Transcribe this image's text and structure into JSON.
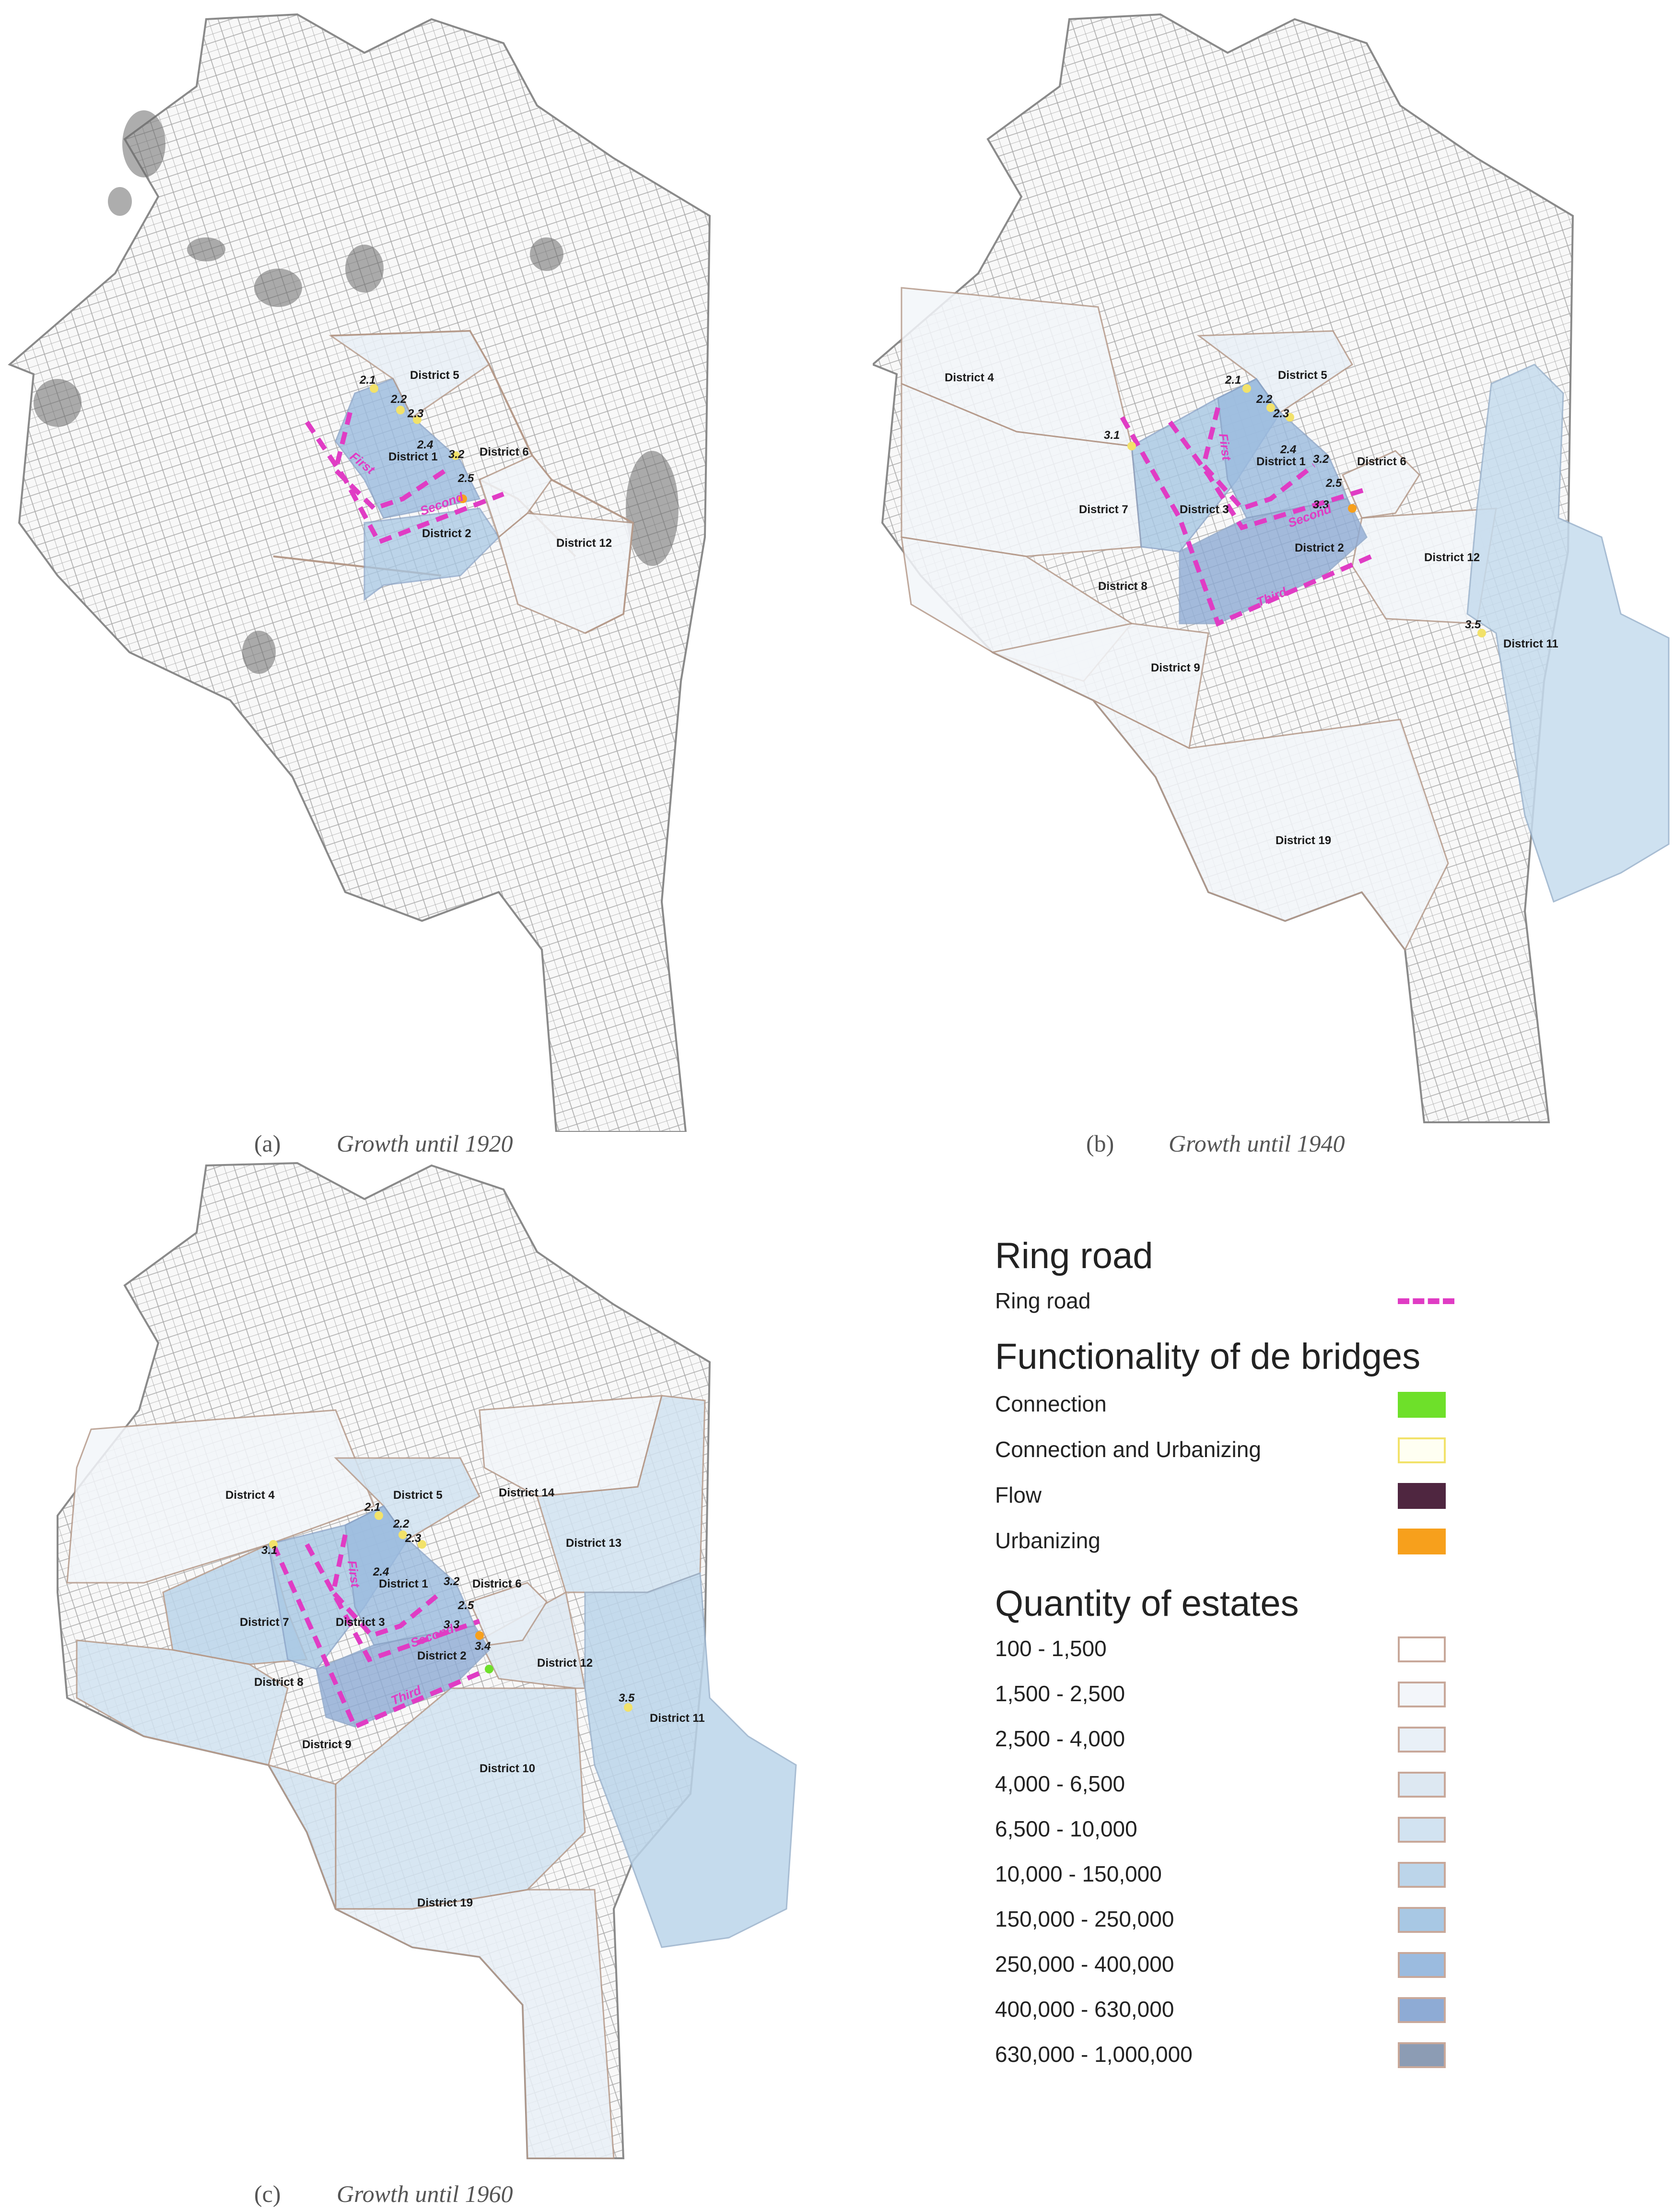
{
  "panels": [
    {
      "letter": "(a)",
      "caption": "Growth until 1920",
      "districts": [
        "District 5",
        "District 1",
        "District 6",
        "District 2",
        "District 12"
      ],
      "bridges": [
        "2.1",
        "2.2",
        "2.3",
        "2.4",
        "3.2",
        "2.5"
      ],
      "ring_roads": [
        "First",
        "Second"
      ]
    },
    {
      "letter": "(b)",
      "caption": "Growth until 1940",
      "districts": [
        "District 4",
        "District 5",
        "District 6",
        "District 1",
        "District 7",
        "District 3",
        "District 2",
        "District 12",
        "District 8",
        "District 11",
        "District 9",
        "District 19"
      ],
      "bridges": [
        "2.1",
        "2.2",
        "2.3",
        "3.1",
        "2.4",
        "3.2",
        "2.5",
        "3.3",
        "3.5"
      ],
      "ring_roads": [
        "First",
        "Second",
        "Third"
      ]
    },
    {
      "letter": "(c)",
      "caption": "Growth until 1960",
      "districts": [
        "District 4",
        "District 5",
        "District 14",
        "District 13",
        "District 6",
        "District 1",
        "District 7",
        "District 3",
        "District 2",
        "District 12",
        "District 8",
        "District 11",
        "District 9",
        "District 10",
        "District 19"
      ],
      "bridges": [
        "2.1",
        "2.2",
        "2.3",
        "3.1",
        "2.4",
        "3.2",
        "2.5",
        "3.3",
        "3.4",
        "3.5"
      ],
      "ring_roads": [
        "First",
        "Second",
        "Third"
      ]
    }
  ],
  "legend": {
    "ring_road": {
      "heading": "Ring road",
      "item": "Ring road",
      "color": "#e03cc4"
    },
    "bridges": {
      "heading": "Functionality of de bridges",
      "items": [
        {
          "label": "Connection",
          "color": "#6ee02a",
          "border": "#6ee02a"
        },
        {
          "label": "Connection and Urbanizing",
          "color": "#fffff2",
          "border": "#f2e26a"
        },
        {
          "label": "Flow",
          "color": "#4f2640",
          "border": "#4f2640"
        },
        {
          "label": "Urbanizing",
          "color": "#f7a01c",
          "border": "#f7a01c"
        }
      ]
    },
    "estates": {
      "heading": "Quantity of estates",
      "items": [
        {
          "label": "100 - 1,500",
          "color": "#ffffff"
        },
        {
          "label": "1,500 - 2,500",
          "color": "#f3f6fa"
        },
        {
          "label": "2,500 - 4,000",
          "color": "#e9f0f7"
        },
        {
          "label": "4,000 - 6,500",
          "color": "#dde8f2"
        },
        {
          "label": "6,500 - 10,000",
          "color": "#d2e3f1"
        },
        {
          "label": "10,000 - 150,000",
          "color": "#bcd5ea"
        },
        {
          "label": "150,000 - 250,000",
          "color": "#a8c8e4"
        },
        {
          "label": "250,000 - 400,000",
          "color": "#9bbbdf"
        },
        {
          "label": "400,000 - 630,000",
          "color": "#8eabd5"
        },
        {
          "label": "630,000 - 1,000,000",
          "color": "#8c9cb4"
        }
      ]
    }
  }
}
